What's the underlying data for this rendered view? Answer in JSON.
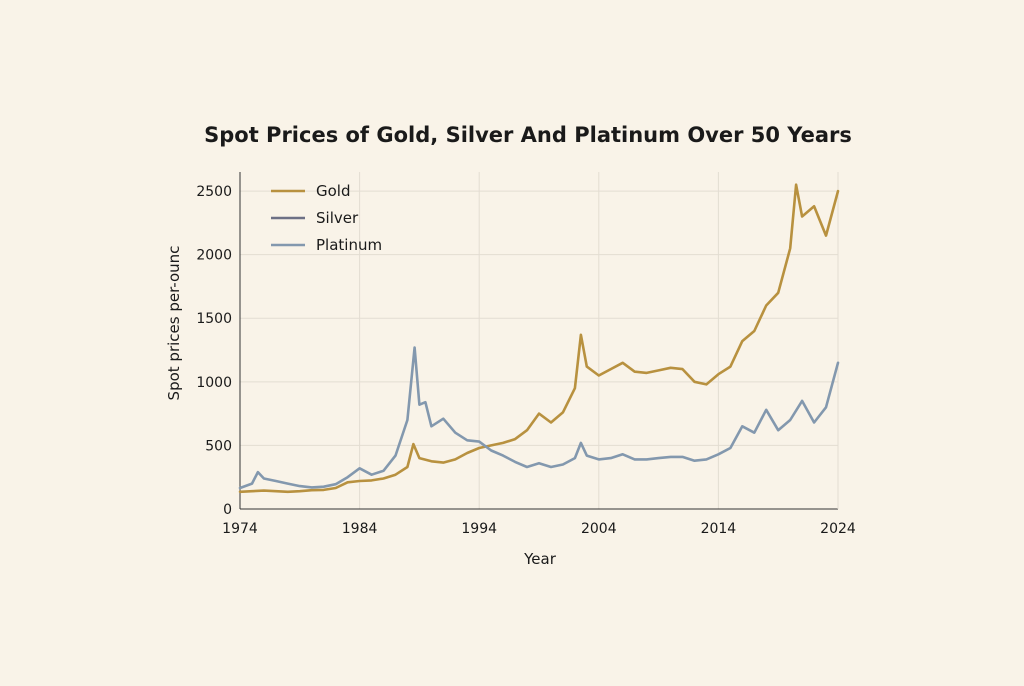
{
  "chart_data": {
    "type": "line",
    "title": "Spot Prices of Gold, Silver And Platinum Over 50 Years",
    "xlabel": "Year",
    "ylabel": "Spot prices per-ounc",
    "xlim": [
      1974,
      2024
    ],
    "ylim": [
      0,
      2650
    ],
    "x_ticks": [
      1974,
      1984,
      1994,
      2004,
      2014,
      2024
    ],
    "y_ticks": [
      0,
      500,
      1000,
      1500,
      2000,
      2500
    ],
    "legend_position": "top-left",
    "grid": true,
    "series": [
      {
        "name": "Gold",
        "color": "#b8913f",
        "x": [
          1974,
          1975,
          1976,
          1977,
          1978,
          1979,
          1980,
          1981,
          1982,
          1983,
          1984,
          1985,
          1986,
          1987,
          1988,
          1988.5,
          1989,
          1990,
          1991,
          1992,
          1993,
          1994,
          1995,
          1996,
          1997,
          1998,
          1999,
          2000,
          2001,
          2002,
          2002.5,
          2003,
          2004,
          2005,
          2006,
          2007,
          2008,
          2009,
          2010,
          2011,
          2012,
          2013,
          2014,
          2015,
          2016,
          2017,
          2018,
          2019,
          2020,
          2020.5,
          2021,
          2022,
          2023,
          2024
        ],
        "y": [
          135,
          140,
          145,
          140,
          135,
          140,
          148,
          150,
          165,
          210,
          220,
          225,
          240,
          270,
          330,
          510,
          400,
          375,
          365,
          390,
          440,
          480,
          500,
          520,
          550,
          620,
          750,
          680,
          760,
          950,
          1370,
          1120,
          1050,
          1100,
          1150,
          1080,
          1070,
          1090,
          1110,
          1100,
          1000,
          980,
          1060,
          1120,
          1320,
          1400,
          1600,
          1700,
          2050,
          2550,
          2300,
          2380,
          2150,
          2500
        ]
      },
      {
        "name": "Silver",
        "color": "#6d7085",
        "x": [],
        "y": []
      },
      {
        "name": "Platinum",
        "color": "#8398ae",
        "x": [
          1974,
          1975,
          1975.5,
          1976,
          1977,
          1978,
          1979,
          1980,
          1981,
          1982,
          1983,
          1984,
          1985,
          1986,
          1987,
          1988,
          1988.6,
          1989,
          1989.5,
          1990,
          1991,
          1992,
          1993,
          1994,
          1995,
          1996,
          1997,
          1998,
          1999,
          2000,
          2001,
          2002,
          2002.5,
          2003,
          2004,
          2005,
          2006,
          2007,
          2008,
          2009,
          2010,
          2011,
          2012,
          2013,
          2014,
          2015,
          2016,
          2017,
          2018,
          2019,
          2020,
          2021,
          2022,
          2023,
          2024
        ],
        "y": [
          165,
          200,
          290,
          240,
          220,
          200,
          180,
          170,
          175,
          195,
          250,
          320,
          270,
          300,
          420,
          700,
          1270,
          820,
          840,
          650,
          710,
          600,
          540,
          530,
          460,
          420,
          370,
          330,
          360,
          330,
          350,
          400,
          520,
          420,
          390,
          400,
          430,
          390,
          390,
          400,
          410,
          410,
          380,
          390,
          430,
          480,
          650,
          600,
          780,
          620,
          700,
          850,
          680,
          800,
          1150
        ]
      }
    ]
  }
}
